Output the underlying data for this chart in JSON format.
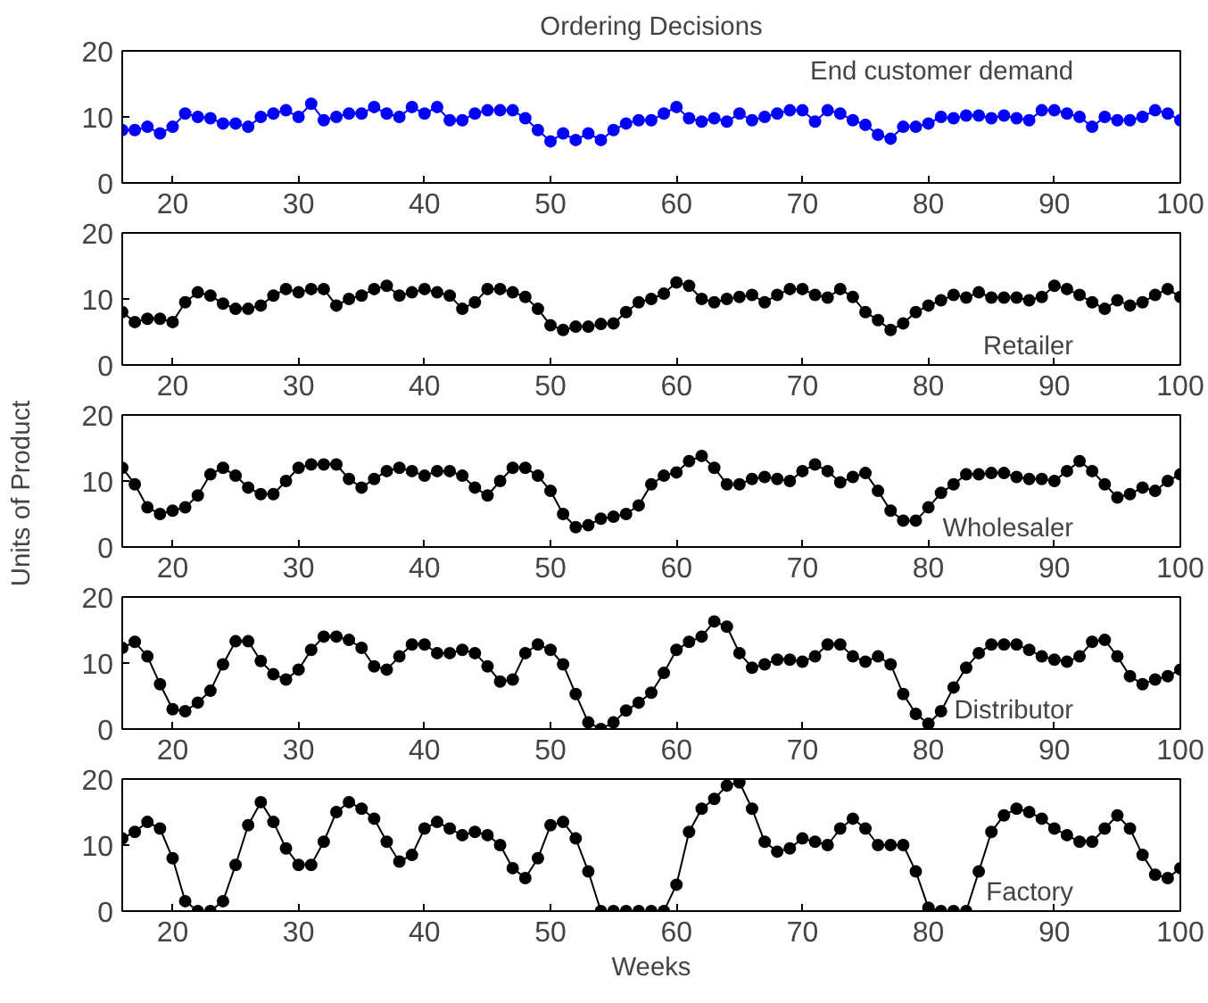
{
  "chart_data": [
    {
      "type": "line",
      "title": "Ordering Decisions",
      "marker": "circle",
      "line_style": "solid",
      "grid": false,
      "legend": "top right",
      "xlim": [
        16,
        100
      ],
      "ylim": [
        0,
        20
      ],
      "xticks": [
        20,
        30,
        40,
        50,
        60,
        70,
        80,
        90,
        100
      ],
      "yticks": [
        0,
        10,
        20
      ],
      "x": [
        16,
        17,
        18,
        19,
        20,
        21,
        22,
        23,
        24,
        25,
        26,
        27,
        28,
        29,
        30,
        31,
        32,
        33,
        34,
        35,
        36,
        37,
        38,
        39,
        40,
        41,
        42,
        43,
        44,
        45,
        46,
        47,
        48,
        49,
        50,
        51,
        52,
        53,
        54,
        55,
        56,
        57,
        58,
        59,
        60,
        61,
        62,
        63,
        64,
        65,
        66,
        67,
        68,
        69,
        70,
        71,
        72,
        73,
        74,
        75,
        76,
        77,
        78,
        79,
        80,
        81,
        82,
        83,
        84,
        85,
        86,
        87,
        88,
        89,
        90,
        91,
        92,
        93,
        94,
        95,
        96,
        97,
        98,
        99,
        100
      ],
      "series": [
        {
          "name": "End customer demand",
          "color": "#0000ff",
          "values": [
            8,
            8,
            8.5,
            7.5,
            8.5,
            10.5,
            10,
            9.8,
            9,
            9,
            8.5,
            10,
            10.5,
            11,
            10,
            12,
            9.5,
            10,
            10.5,
            10.5,
            11.5,
            10.5,
            10,
            11.5,
            10.5,
            11.5,
            9.5,
            9.5,
            10.5,
            11,
            11,
            11,
            9.8,
            8,
            6.3,
            7.5,
            6.5,
            7.5,
            6.5,
            8,
            9,
            9.5,
            9.5,
            10.5,
            11.5,
            9.8,
            9.3,
            9.8,
            9.3,
            10.5,
            9.5,
            10,
            10.5,
            11,
            11,
            9.3,
            11,
            10.5,
            9.5,
            8.8,
            7.3,
            6.7,
            8.5,
            8.5,
            9,
            10,
            9.8,
            10.2,
            10.2,
            9.8,
            10.2,
            9.8,
            9.5,
            11,
            11,
            10.5,
            10,
            8.5,
            10,
            9.5,
            9.5,
            10,
            11,
            10.5,
            9.5
          ]
        }
      ]
    },
    {
      "type": "line",
      "marker": "circle",
      "line_style": "solid",
      "grid": false,
      "legend": "bottom right",
      "xlim": [
        16,
        100
      ],
      "ylim": [
        0,
        20
      ],
      "xticks": [
        20,
        30,
        40,
        50,
        60,
        70,
        80,
        90,
        100
      ],
      "yticks": [
        0,
        10,
        20
      ],
      "x": [
        16,
        17,
        18,
        19,
        20,
        21,
        22,
        23,
        24,
        25,
        26,
        27,
        28,
        29,
        30,
        31,
        32,
        33,
        34,
        35,
        36,
        37,
        38,
        39,
        40,
        41,
        42,
        43,
        44,
        45,
        46,
        47,
        48,
        49,
        50,
        51,
        52,
        53,
        54,
        55,
        56,
        57,
        58,
        59,
        60,
        61,
        62,
        63,
        64,
        65,
        66,
        67,
        68,
        69,
        70,
        71,
        72,
        73,
        74,
        75,
        76,
        77,
        78,
        79,
        80,
        81,
        82,
        83,
        84,
        85,
        86,
        87,
        88,
        89,
        90,
        91,
        92,
        93,
        94,
        95,
        96,
        97,
        98,
        99,
        100
      ],
      "series": [
        {
          "name": "Retailer",
          "color": "#000000",
          "values": [
            8,
            6.5,
            7,
            7,
            6.5,
            9.5,
            11,
            10.5,
            9.3,
            8.5,
            8.5,
            9,
            10.5,
            11.5,
            11,
            11.5,
            11.5,
            9,
            10,
            10.5,
            11.5,
            12,
            10.5,
            11,
            11.5,
            11,
            10.5,
            8.5,
            9.5,
            11.5,
            11.5,
            11,
            10.3,
            8.5,
            6,
            5.3,
            5.8,
            5.8,
            6.2,
            6.3,
            8,
            9.5,
            10,
            10.8,
            12.5,
            12,
            10,
            9.5,
            10,
            10.3,
            10.6,
            9.5,
            10.6,
            11.5,
            11.5,
            10.6,
            10.2,
            11.5,
            10.3,
            8,
            6.8,
            5.3,
            6.3,
            8,
            9,
            9.8,
            10.6,
            10.2,
            11,
            10.2,
            10.2,
            10.2,
            9.8,
            10.3,
            12,
            11.5,
            10.6,
            9.5,
            8.5,
            9.8,
            9,
            9.5,
            10.6,
            11.5,
            10.3
          ]
        }
      ]
    },
    {
      "type": "line",
      "ylabel": "Units of Product",
      "marker": "circle",
      "line_style": "solid",
      "grid": false,
      "legend": "bottom right",
      "xlim": [
        16,
        100
      ],
      "ylim": [
        0,
        20
      ],
      "xticks": [
        20,
        30,
        40,
        50,
        60,
        70,
        80,
        90,
        100
      ],
      "yticks": [
        0,
        10,
        20
      ],
      "x": [
        16,
        17,
        18,
        19,
        20,
        21,
        22,
        23,
        24,
        25,
        26,
        27,
        28,
        29,
        30,
        31,
        32,
        33,
        34,
        35,
        36,
        37,
        38,
        39,
        40,
        41,
        42,
        43,
        44,
        45,
        46,
        47,
        48,
        49,
        50,
        51,
        52,
        53,
        54,
        55,
        56,
        57,
        58,
        59,
        60,
        61,
        62,
        63,
        64,
        65,
        66,
        67,
        68,
        69,
        70,
        71,
        72,
        73,
        74,
        75,
        76,
        77,
        78,
        79,
        80,
        81,
        82,
        83,
        84,
        85,
        86,
        87,
        88,
        89,
        90,
        91,
        92,
        93,
        94,
        95,
        96,
        97,
        98,
        99,
        100
      ],
      "series": [
        {
          "name": "Wholesaler",
          "color": "#000000",
          "values": [
            12,
            9.5,
            6,
            5,
            5.5,
            6,
            7.8,
            11,
            12,
            10.8,
            9,
            8,
            8,
            10,
            12,
            12.5,
            12.5,
            12.5,
            10.3,
            9,
            10.3,
            11.5,
            12,
            11.5,
            10.8,
            11.5,
            11.5,
            10.8,
            9,
            7.8,
            10,
            12,
            12,
            10.8,
            8.5,
            5,
            3,
            3.3,
            4.3,
            4.6,
            5,
            6.3,
            9.5,
            10.8,
            11.3,
            13,
            13.8,
            12,
            9.5,
            9.5,
            10.3,
            10.6,
            10.3,
            10,
            11.5,
            12.5,
            11.5,
            9.8,
            10.6,
            11.2,
            8.5,
            5.5,
            4,
            4,
            6,
            8.2,
            9.5,
            11,
            11,
            11.2,
            11.2,
            10.6,
            10.3,
            10.3,
            10,
            11.5,
            13,
            11.5,
            9.5,
            7.5,
            8,
            9,
            8.5,
            10,
            11
          ]
        }
      ]
    },
    {
      "type": "line",
      "marker": "circle",
      "line_style": "solid",
      "grid": false,
      "legend": "bottom right",
      "xlim": [
        16,
        100
      ],
      "ylim": [
        0,
        20
      ],
      "xticks": [
        20,
        30,
        40,
        50,
        60,
        70,
        80,
        90,
        100
      ],
      "yticks": [
        0,
        10,
        20
      ],
      "x": [
        16,
        17,
        18,
        19,
        20,
        21,
        22,
        23,
        24,
        25,
        26,
        27,
        28,
        29,
        30,
        31,
        32,
        33,
        34,
        35,
        36,
        37,
        38,
        39,
        40,
        41,
        42,
        43,
        44,
        45,
        46,
        47,
        48,
        49,
        50,
        51,
        52,
        53,
        54,
        55,
        56,
        57,
        58,
        59,
        60,
        61,
        62,
        63,
        64,
        65,
        66,
        67,
        68,
        69,
        70,
        71,
        72,
        73,
        74,
        75,
        76,
        77,
        78,
        79,
        80,
        81,
        82,
        83,
        84,
        85,
        86,
        87,
        88,
        89,
        90,
        91,
        92,
        93,
        94,
        95,
        96,
        97,
        98,
        99,
        100
      ],
      "series": [
        {
          "name": "Distributor",
          "color": "#000000",
          "values": [
            12.3,
            13.2,
            11,
            6.8,
            3,
            2.7,
            4,
            5.8,
            9.8,
            13.3,
            13.3,
            10.3,
            8.3,
            7.5,
            9,
            12,
            14,
            14,
            13.5,
            12.3,
            9.5,
            9,
            11,
            12.8,
            12.8,
            11.5,
            11.5,
            12,
            11.5,
            9.5,
            7.2,
            7.5,
            11.5,
            12.8,
            12,
            9.8,
            5.3,
            1,
            0,
            1,
            2.8,
            4,
            5.5,
            8.5,
            12,
            13.2,
            14,
            16.3,
            15.5,
            11.5,
            9.3,
            9.8,
            10.5,
            10.5,
            10.2,
            11,
            12.8,
            12.8,
            11,
            10.2,
            11,
            9.8,
            5.3,
            2.3,
            0.8,
            2.7,
            6.3,
            9.3,
            11.5,
            12.8,
            12.8,
            12.8,
            12,
            11,
            10.5,
            10.2,
            11,
            13.2,
            13.5,
            11,
            8,
            6.8,
            7.5,
            8,
            9
          ]
        }
      ]
    },
    {
      "type": "line",
      "xlabel": "Weeks",
      "marker": "circle",
      "line_style": "solid",
      "grid": false,
      "legend": "bottom right",
      "xlim": [
        16,
        100
      ],
      "ylim": [
        0,
        20
      ],
      "xticks": [
        20,
        30,
        40,
        50,
        60,
        70,
        80,
        90,
        100
      ],
      "yticks": [
        0,
        10,
        20
      ],
      "x": [
        16,
        17,
        18,
        19,
        20,
        21,
        22,
        23,
        24,
        25,
        26,
        27,
        28,
        29,
        30,
        31,
        32,
        33,
        34,
        35,
        36,
        37,
        38,
        39,
        40,
        41,
        42,
        43,
        44,
        45,
        46,
        47,
        48,
        49,
        50,
        51,
        52,
        53,
        54,
        55,
        56,
        57,
        58,
        59,
        60,
        61,
        62,
        63,
        64,
        65,
        66,
        67,
        68,
        69,
        70,
        71,
        72,
        73,
        74,
        75,
        76,
        77,
        78,
        79,
        80,
        81,
        82,
        83,
        84,
        85,
        86,
        87,
        88,
        89,
        90,
        91,
        92,
        93,
        94,
        95,
        96,
        97,
        98,
        99,
        100
      ],
      "series": [
        {
          "name": "Factory",
          "color": "#000000",
          "values": [
            11,
            12,
            13.5,
            12.5,
            8,
            1.5,
            0,
            0,
            1.5,
            7,
            13,
            16.5,
            13.5,
            9.5,
            7,
            7,
            10.5,
            15,
            16.5,
            15.5,
            14,
            10.5,
            7.5,
            8.5,
            12.5,
            13.5,
            12.5,
            11.5,
            12,
            11.5,
            10,
            6.5,
            5,
            8,
            13,
            13.5,
            11,
            6,
            0,
            0,
            0,
            0,
            0,
            0,
            4,
            12,
            15.5,
            17,
            19,
            19.5,
            15.5,
            10.5,
            9,
            9.5,
            11,
            10.5,
            10,
            12.5,
            14,
            12.5,
            10,
            10,
            10,
            6,
            0.5,
            0,
            0,
            0,
            6,
            12,
            14.5,
            15.5,
            15,
            14,
            12.5,
            11.5,
            10.5,
            10.5,
            12.5,
            14.5,
            12.5,
            8.5,
            5.5,
            5,
            6.5
          ]
        }
      ]
    }
  ]
}
